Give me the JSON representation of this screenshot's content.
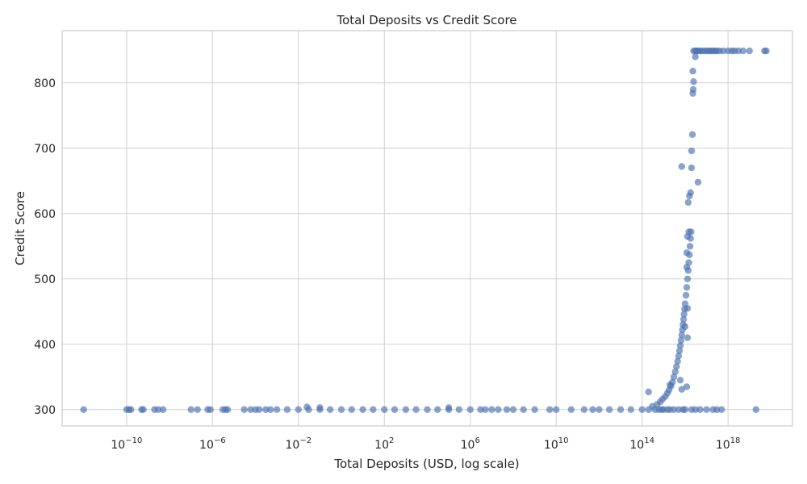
{
  "chart_data": {
    "type": "scatter",
    "title": "Total Deposits vs Credit Score",
    "xlabel": "Total Deposits (USD, log scale)",
    "ylabel": "Credit Score",
    "x_scale": "log",
    "xlim": [
      1e-13,
      1e+21
    ],
    "ylim": [
      275,
      880
    ],
    "x_ticks": [
      {
        "value": 1e-10,
        "base": "10",
        "exp": "−10"
      },
      {
        "value": 1e-06,
        "base": "10",
        "exp": "−6"
      },
      {
        "value": 0.01,
        "base": "10",
        "exp": "−2"
      },
      {
        "value": 100.0,
        "base": "10",
        "exp": "2"
      },
      {
        "value": 1000000.0,
        "base": "10",
        "exp": "6"
      },
      {
        "value": 10000000000.0,
        "base": "10",
        "exp": "10"
      },
      {
        "value": 100000000000000.0,
        "base": "10",
        "exp": "14"
      },
      {
        "value": 1e+18,
        "base": "10",
        "exp": "18"
      }
    ],
    "y_ticks": [
      300,
      400,
      500,
      600,
      700,
      800
    ],
    "grid": true,
    "series": [
      {
        "color": "#4c72b0",
        "points": [
          [
            1e-12,
            300
          ],
          [
            1e-10,
            300
          ],
          [
            1.3e-10,
            300
          ],
          [
            1.6e-10,
            300
          ],
          [
            5e-10,
            300
          ],
          [
            6e-10,
            300
          ],
          [
            2e-09,
            300
          ],
          [
            3e-09,
            300
          ],
          [
            5e-09,
            300
          ],
          [
            1e-07,
            300
          ],
          [
            2e-07,
            300
          ],
          [
            6e-07,
            300
          ],
          [
            8e-07,
            300
          ],
          [
            3e-06,
            300
          ],
          [
            4e-06,
            300
          ],
          [
            5e-06,
            300
          ],
          [
            3e-05,
            300
          ],
          [
            6e-05,
            300
          ],
          [
            0.0001,
            300
          ],
          [
            0.00015,
            300
          ],
          [
            0.0003,
            300
          ],
          [
            0.0005,
            300
          ],
          [
            0.001,
            300
          ],
          [
            0.003,
            300
          ],
          [
            0.01,
            300
          ],
          [
            0.03,
            300
          ],
          [
            0.1,
            300
          ],
          [
            0.3,
            300
          ],
          [
            1,
            300
          ],
          [
            3,
            300
          ],
          [
            10,
            300
          ],
          [
            30,
            300
          ],
          [
            100,
            300
          ],
          [
            300,
            300
          ],
          [
            1000,
            300
          ],
          [
            3000,
            300
          ],
          [
            10000.0,
            300
          ],
          [
            30000.0,
            300
          ],
          [
            100000.0,
            300
          ],
          [
            300000.0,
            300
          ],
          [
            1000000.0,
            300
          ],
          [
            3000000.0,
            300
          ],
          [
            5000000.0,
            300
          ],
          [
            10000000.0,
            300
          ],
          [
            20000000.0,
            300
          ],
          [
            50000000.0,
            300
          ],
          [
            100000000.0,
            300
          ],
          [
            300000000.0,
            300
          ],
          [
            1000000000.0,
            300
          ],
          [
            5000000000.0,
            300
          ],
          [
            10000000000.0,
            300
          ],
          [
            50000000000.0,
            300
          ],
          [
            200000000000.0,
            300
          ],
          [
            500000000000.0,
            300
          ],
          [
            1000000000000.0,
            300
          ],
          [
            3000000000000.0,
            300
          ],
          [
            10000000000000.0,
            300
          ],
          [
            30000000000000.0,
            300
          ],
          [
            100000000000000.0,
            300
          ],
          [
            200000000000000.0,
            300
          ],
          [
            400000000000000.0,
            300
          ],
          [
            600000000000000.0,
            300
          ],
          [
            800000000000000.0,
            300
          ],
          [
            1000000000000000.0,
            300
          ],
          [
            1500000000000000.0,
            300
          ],
          [
            2000000000000000.0,
            300
          ],
          [
            3000000000000000.0,
            300
          ],
          [
            5000000000000000.0,
            300
          ],
          [
            8000000000000000.0,
            300
          ],
          [
            1e+16,
            300
          ],
          [
            2e+16,
            300
          ],
          [
            3e+16,
            300
          ],
          [
            5e+16,
            300
          ],
          [
            1e+17,
            300
          ],
          [
            2e+17,
            300
          ],
          [
            3e+17,
            300
          ],
          [
            5e+17,
            300
          ],
          [
            2e+19,
            300
          ],
          [
            0.1,
            303
          ],
          [
            100000.0,
            303
          ],
          [
            0.025,
            304
          ],
          [
            300000000000000.0,
            305
          ],
          [
            500000000000000.0,
            308
          ],
          [
            700000000000000.0,
            312
          ],
          [
            900000000000000.0,
            316
          ],
          [
            1200000000000000.0,
            320
          ],
          [
            1500000000000000.0,
            325
          ],
          [
            1800000000000000.0,
            330
          ],
          [
            2200000000000000.0,
            336
          ],
          [
            2600000000000000.0,
            342
          ],
          [
            3000000000000000.0,
            350
          ],
          [
            3500000000000000.0,
            358
          ],
          [
            4000000000000000.0,
            366
          ],
          [
            4500000000000000.0,
            374
          ],
          [
            5000000000000000.0,
            382
          ],
          [
            5500000000000000.0,
            390
          ],
          [
            6000000000000000.0,
            398
          ],
          [
            6500000000000000.0,
            406
          ],
          [
            7000000000000000.0,
            414
          ],
          [
            7500000000000000.0,
            422
          ],
          [
            8000000000000000.0,
            430
          ],
          [
            8500000000000000.0,
            438
          ],
          [
            9000000000000000.0,
            446
          ],
          [
            9500000000000000.0,
            454
          ],
          [
            1e+16,
            462
          ],
          [
            1.1e+16,
            475
          ],
          [
            1.2e+16,
            487
          ],
          [
            1.3e+16,
            500
          ],
          [
            1.4e+16,
            513
          ],
          [
            1.5e+16,
            525
          ],
          [
            1.6e+16,
            537
          ],
          [
            1.7e+16,
            550
          ],
          [
            1.8e+16,
            562
          ],
          [
            1.9e+16,
            572
          ],
          [
            200000000000000.0,
            327
          ],
          [
            2000000000000000.0,
            338
          ],
          [
            7000000000000000.0,
            331
          ],
          [
            1.2e+16,
            335
          ],
          [
            6000000000000000.0,
            345
          ],
          [
            1.3e+16,
            410
          ],
          [
            1e+16,
            427
          ],
          [
            1.3e+16,
            455
          ],
          [
            1.2e+16,
            518
          ],
          [
            1.2e+16,
            540
          ],
          [
            1.3e+16,
            565
          ],
          [
            1.5e+16,
            572
          ],
          [
            1.4e+16,
            617
          ],
          [
            1.6e+16,
            627
          ],
          [
            1.8e+16,
            632
          ],
          [
            4e+16,
            648
          ],
          [
            7000000000000000.0,
            672
          ],
          [
            2e+16,
            670
          ],
          [
            2e+16,
            696
          ],
          [
            2.2e+16,
            721
          ],
          [
            2.3e+16,
            784
          ],
          [
            2.4e+16,
            790
          ],
          [
            2.5e+16,
            802
          ],
          [
            2.3e+16,
            818
          ],
          [
            3e+16,
            840
          ],
          [
            2.5e+16,
            849
          ],
          [
            3e+16,
            849
          ],
          [
            3.5e+16,
            849
          ],
          [
            4e+16,
            849
          ],
          [
            5e+16,
            849
          ],
          [
            6e+16,
            849
          ],
          [
            8e+16,
            849
          ],
          [
            1e+17,
            849
          ],
          [
            1.3e+17,
            849
          ],
          [
            1.6e+17,
            849
          ],
          [
            2e+17,
            849
          ],
          [
            2.5e+17,
            849
          ],
          [
            3e+17,
            849
          ],
          [
            4e+17,
            849
          ],
          [
            6e+17,
            849
          ],
          [
            1e+18,
            849
          ],
          [
            1.5e+18,
            849
          ],
          [
            2e+18,
            849
          ],
          [
            3e+18,
            849
          ],
          [
            5e+18,
            849
          ],
          [
            1e+19,
            849
          ],
          [
            5e+19,
            849
          ],
          [
            6e+19,
            849
          ]
        ]
      }
    ]
  }
}
